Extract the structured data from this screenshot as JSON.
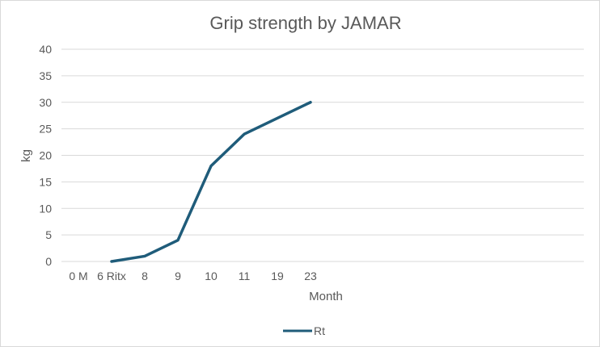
{
  "chart_data": {
    "type": "line",
    "title": "Grip strength by JAMAR",
    "xlabel": "Month",
    "ylabel": "kg",
    "categories": [
      "0 M",
      "6 Ritx",
      "8",
      "9",
      "10",
      "11",
      "19",
      "23"
    ],
    "series": [
      {
        "name": "Rt",
        "values": [
          null,
          0,
          1,
          4,
          18,
          24,
          27,
          30
        ],
        "color": "#1f5c7a"
      }
    ],
    "ylim": [
      0,
      40
    ],
    "yticks": [
      0,
      5,
      10,
      15,
      20,
      25,
      30,
      35,
      40
    ],
    "grid": true,
    "legend": "bottom",
    "gridColor": "#d9d9d9"
  }
}
